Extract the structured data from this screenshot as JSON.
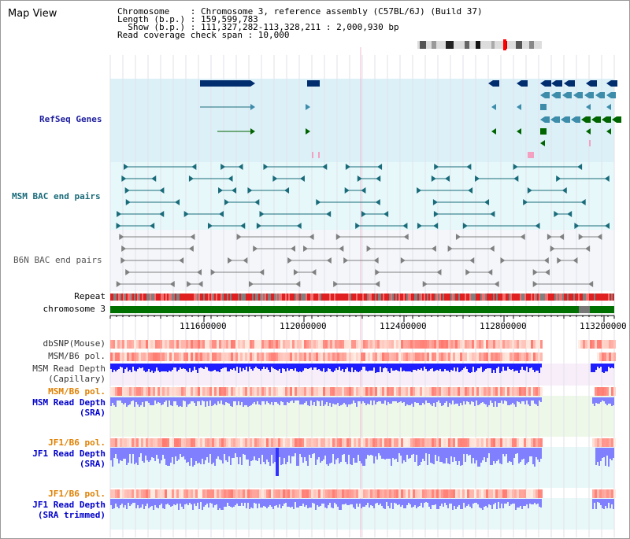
{
  "header": {
    "view_title": "Map View",
    "chromosome_line": "Chromosome    : Chromosome 3, reference assembly (C57BL/6J) (Build 37)",
    "length_line": "Length (b.p.) : 159,599,783",
    "show_line": "  Show (b.p.) : 111,327,282-113,328,211 : 2,000,930 bp",
    "coverage_line": "Read coverage check span : 10,000"
  },
  "tracks": {
    "refseq": "RefSeq Genes",
    "msm_bac": "MSM BAC end pairs",
    "b6n_bac": "B6N BAC end pairs",
    "repeat": "Repeat",
    "chromosome": "chromosome 3",
    "dbsnp": "dbSNP(Mouse)",
    "msm_b6_pol_1": "MSM/B6 pol.",
    "msm_depth_cap_1": "MSM Read Depth",
    "msm_depth_cap_2": "(Capillary)",
    "msm_b6_pol_2": "MSM/B6 pol.",
    "msm_depth_sra_1": "MSM Read Depth",
    "msm_depth_sra_2": "(SRA)",
    "jf1_b6_pol_1": "JF1/B6 pol.",
    "jf1_depth_sra_1": "JF1 Read Depth",
    "jf1_depth_sra_2": "(SRA)",
    "jf1_b6_pol_2": "JF1/B6 pol.",
    "jf1_depth_trim_1": "JF1 Read Depth",
    "jf1_depth_trim_2": "(SRA trimmed)"
  },
  "axis": {
    "ticks": [
      "111600000",
      "112000000",
      "112400000",
      "112800000",
      "113200000"
    ]
  },
  "colors": {
    "gene_dark": "#002d6e",
    "gene_mid": "#3c8caa",
    "gene_green": "#006400",
    "gene_pink": "#f4a0c0",
    "msm_link": "#1a6b7a",
    "b6n_link": "#808080",
    "repeat_red": "#e02020",
    "repeat_gray": "#808080",
    "chrom_green": "#007000",
    "depth_blue": "#1e1eff",
    "depth_light_blue": "#8080ff",
    "track_label_blue": "#0000cc",
    "track_label_orange": "#e08000",
    "refseq_label": "#1f1f9f",
    "msm_label": "#1a6b7a"
  }
}
